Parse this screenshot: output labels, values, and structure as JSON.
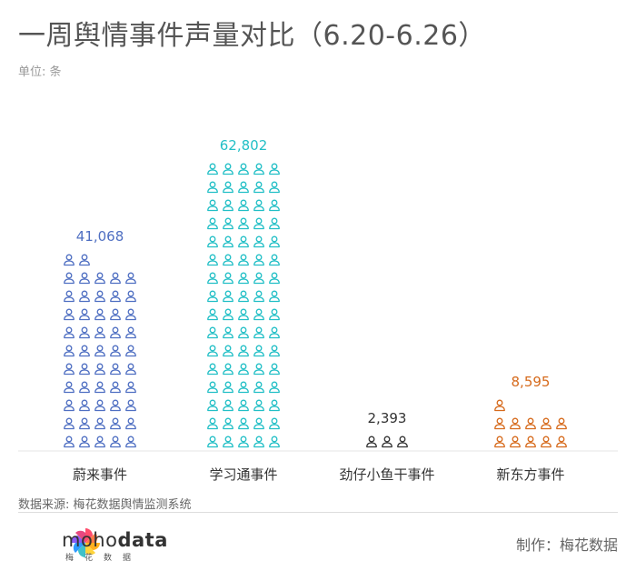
{
  "title": "一周舆情事件声量对比（6.20-6.26）",
  "unit_label": "单位: 条",
  "source": "数据来源: 梅花数据舆情监测系统",
  "brand": {
    "name_regular": "moho",
    "name_bold": "data",
    "sub": "梅花数据"
  },
  "maker": "制作：梅花数据",
  "chart_data": {
    "type": "bar",
    "categories": [
      "蔚来事件",
      "学习通事件",
      "劲仔小鱼干事件",
      "新东方事件"
    ],
    "values": [
      41068,
      62802,
      2393,
      8595
    ],
    "value_labels": [
      "41,068",
      "62,802",
      "2,393",
      "8,595"
    ],
    "colors": [
      "#4f6fc2",
      "#22bfc6",
      "#333333",
      "#d66a1c"
    ],
    "label_colors": [
      "#4f6fc2",
      "#22bfc6",
      "#333333",
      "#d66a1c"
    ],
    "icon_counts": [
      52,
      80,
      3,
      11
    ],
    "icons_per_row": 5,
    "unit": "条",
    "grid": false
  }
}
